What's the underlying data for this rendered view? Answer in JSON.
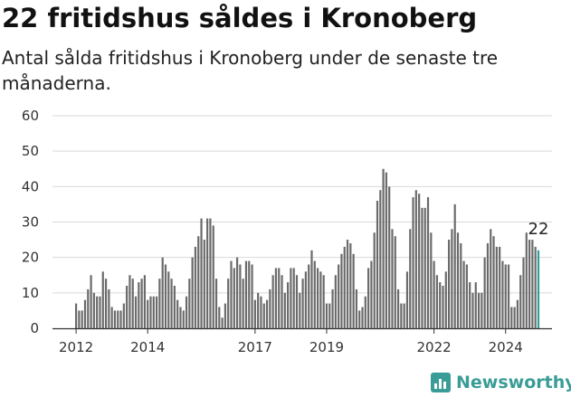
{
  "header": {
    "title": "22 fritidshus såldes i Kronoberg",
    "subtitle": "Antal sålda fritidshus i Kronoberg under de senaste tre månaderna."
  },
  "brand": {
    "name": "Newsworthy",
    "color": "#3a9c96"
  },
  "colors": {
    "bar": "#6b6b6b",
    "highlight": "#2f9e97",
    "grid": "#d9d9d9"
  },
  "chart_data": {
    "type": "bar",
    "ylim": [
      0,
      60
    ],
    "yticks": [
      0,
      10,
      20,
      30,
      40,
      50,
      60
    ],
    "xticks": [
      {
        "label": "2012",
        "index": 0
      },
      {
        "label": "2014",
        "index": 24
      },
      {
        "label": "2017",
        "index": 60
      },
      {
        "label": "2019",
        "index": 84
      },
      {
        "label": "2022",
        "index": 120
      },
      {
        "label": "2024",
        "index": 144
      }
    ],
    "start_period": "2011-11",
    "values": [
      7,
      5,
      5,
      8,
      11,
      15,
      10,
      9,
      9,
      16,
      14,
      11,
      6,
      5,
      5,
      5,
      7,
      12,
      15,
      14,
      9,
      13,
      14,
      15,
      8,
      9,
      9,
      9,
      14,
      20,
      18,
      16,
      14,
      12,
      8,
      6,
      5,
      9,
      14,
      20,
      23,
      26,
      31,
      25,
      31,
      31,
      29,
      14,
      6,
      3,
      7,
      14,
      19,
      17,
      20,
      18,
      14,
      19,
      19,
      18,
      8,
      10,
      9,
      7,
      8,
      11,
      15,
      17,
      17,
      15,
      10,
      13,
      17,
      17,
      15,
      10,
      14,
      16,
      18,
      22,
      19,
      17,
      16,
      15,
      7,
      7,
      11,
      15,
      18,
      21,
      23,
      25,
      24,
      21,
      11,
      5,
      6,
      9,
      17,
      19,
      27,
      36,
      39,
      45,
      44,
      40,
      28,
      26,
      11,
      7,
      7,
      16,
      28,
      37,
      39,
      38,
      34,
      34,
      37,
      27,
      19,
      15,
      13,
      12,
      16,
      25,
      28,
      35,
      27,
      24,
      19,
      18,
      13,
      10,
      13,
      10,
      10,
      20,
      24,
      28,
      26,
      23,
      23,
      19,
      18,
      18,
      6,
      6,
      8,
      15,
      20,
      27,
      25,
      25,
      23,
      22
    ],
    "last_label": "22"
  }
}
